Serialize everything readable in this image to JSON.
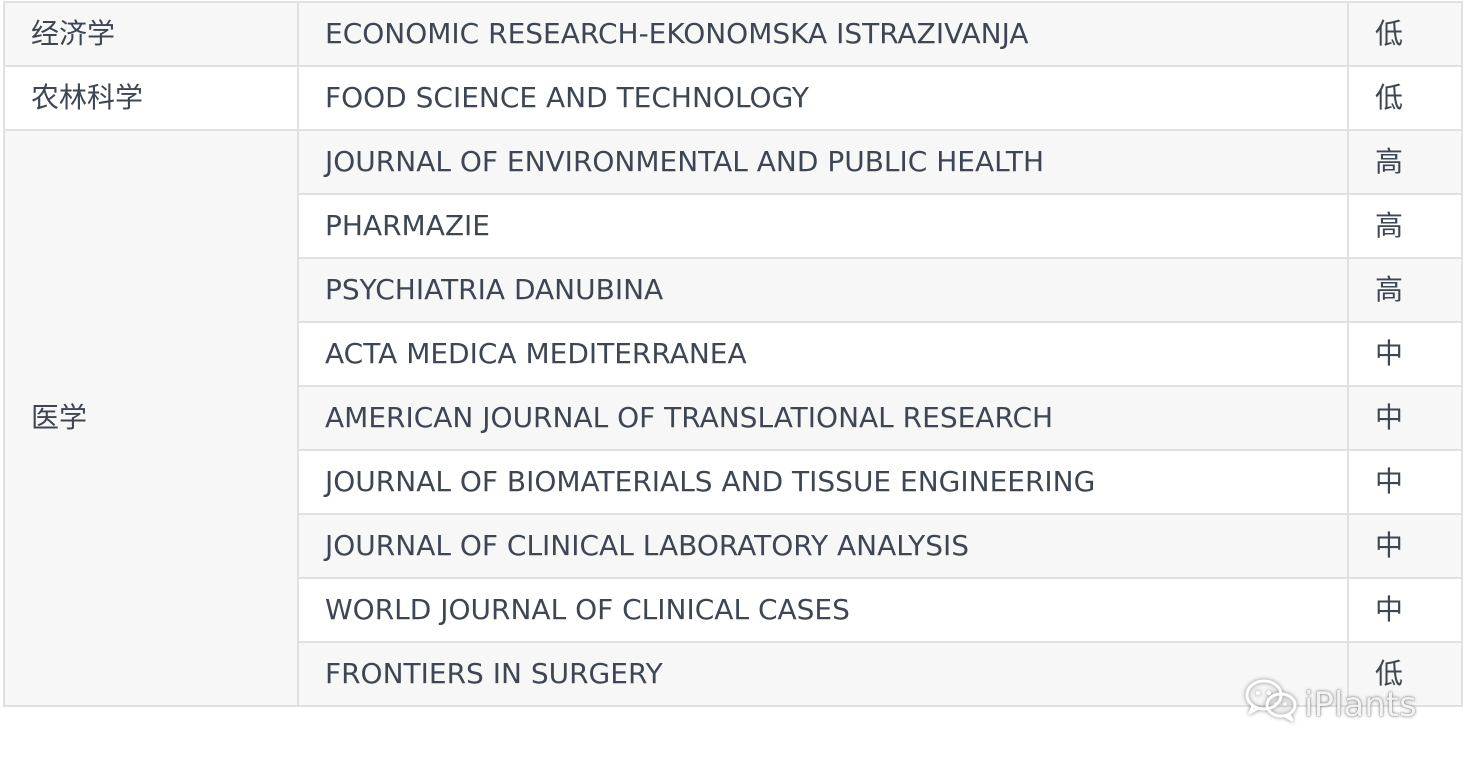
{
  "rows": [
    {
      "category": "经济学",
      "journal": "ECONOMIC RESEARCH-EKONOMSKA ISTRAZIVANJA",
      "risk": "低"
    },
    {
      "category": "农林科学",
      "journal": "FOOD SCIENCE AND TECHNOLOGY",
      "risk": "低"
    },
    {
      "category": "医学",
      "journal": "JOURNAL OF ENVIRONMENTAL AND PUBLIC HEALTH",
      "risk": "高"
    },
    {
      "journal": "PHARMAZIE",
      "risk": "高"
    },
    {
      "journal": "PSYCHIATRIA DANUBINA",
      "risk": "高"
    },
    {
      "journal": "ACTA MEDICA MEDITERRANEA",
      "risk": "中"
    },
    {
      "journal": "AMERICAN JOURNAL OF TRANSLATIONAL RESEARCH",
      "risk": "中"
    },
    {
      "journal": "JOURNAL OF BIOMATERIALS AND TISSUE ENGINEERING",
      "risk": "中"
    },
    {
      "journal": "JOURNAL OF CLINICAL LABORATORY ANALYSIS",
      "risk": "中"
    },
    {
      "journal": "WORLD JOURNAL OF CLINICAL CASES",
      "risk": "中"
    },
    {
      "journal": "FRONTIERS IN SURGERY",
      "risk": "低"
    }
  ],
  "watermark": {
    "text": "iPlants",
    "icon": "wechat-icon"
  }
}
